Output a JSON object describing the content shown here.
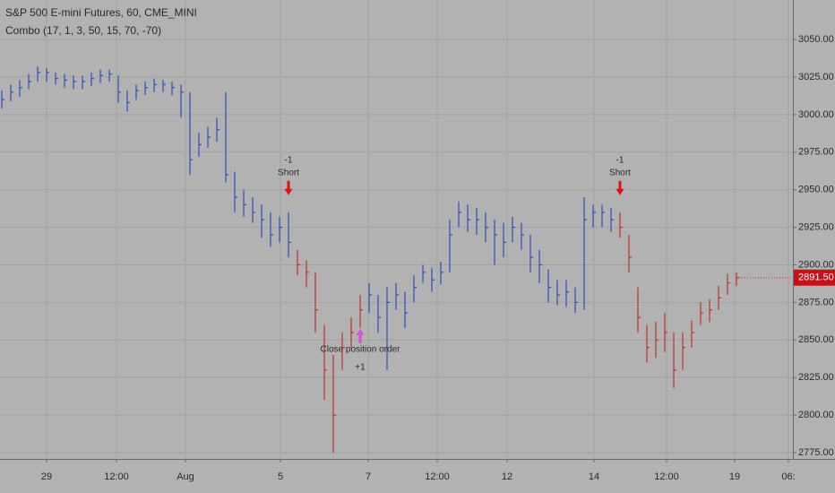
{
  "chart_data": {
    "type": "ohlc",
    "title": "S&P 500 E-mini Futures, 60, CME_MINI",
    "subtitle": "Combo (17, 1, 3, 50, 15, 70, -70)",
    "values": [
      3010,
      3015,
      3018,
      3022,
      3028,
      3028,
      3024,
      3023,
      3022,
      3022,
      3024,
      3026,
      3027,
      3015,
      3008,
      3016,
      3018,
      3020,
      3020,
      3018,
      3015,
      2970,
      2980,
      2985,
      2990,
      2960,
      2945,
      2940,
      2935,
      2930,
      2920,
      2925,
      2915,
      2900,
      2895,
      2870,
      2830,
      2800,
      2845,
      2855,
      2870,
      2880,
      2865,
      2875,
      2880,
      2868,
      2885,
      2895,
      2890,
      2895,
      2920,
      2935,
      2930,
      2930,
      2925,
      2920,
      2915,
      2925,
      2920,
      2905,
      2900,
      2885,
      2880,
      2882,
      2875,
      2930,
      2935,
      2935,
      2930,
      2925,
      2905,
      2865,
      2845,
      2850,
      2855,
      2830,
      2845,
      2855,
      2868,
      2870,
      2878,
      2888,
      2891.5
    ],
    "high": [
      3016,
      3020,
      3023,
      3027,
      3032,
      3031,
      3028,
      3027,
      3026,
      3026,
      3028,
      3030,
      3030,
      3026,
      3016,
      3020,
      3022,
      3024,
      3023,
      3022,
      3020,
      3015,
      2988,
      2992,
      2998,
      3015,
      2962,
      2950,
      2945,
      2940,
      2935,
      2932,
      2935,
      2910,
      2903,
      2895,
      2860,
      2840,
      2855,
      2865,
      2880,
      2888,
      2880,
      2885,
      2888,
      2882,
      2893,
      2900,
      2898,
      2902,
      2930,
      2942,
      2940,
      2938,
      2935,
      2930,
      2928,
      2932,
      2928,
      2920,
      2910,
      2897,
      2890,
      2890,
      2885,
      2945,
      2940,
      2940,
      2938,
      2935,
      2920,
      2885,
      2860,
      2862,
      2868,
      2855,
      2855,
      2863,
      2875,
      2877,
      2886,
      2894,
      2895
    ],
    "low": [
      3004,
      3009,
      3012,
      3017,
      3022,
      3022,
      3020,
      3018,
      3017,
      3017,
      3019,
      3021,
      3022,
      3008,
      3002,
      3010,
      3013,
      3015,
      3015,
      3013,
      2998,
      2960,
      2972,
      2978,
      2982,
      2955,
      2935,
      2932,
      2928,
      2918,
      2912,
      2915,
      2905,
      2893,
      2885,
      2855,
      2810,
      2775,
      2830,
      2845,
      2858,
      2868,
      2855,
      2830,
      2870,
      2858,
      2875,
      2888,
      2882,
      2887,
      2895,
      2925,
      2922,
      2920,
      2915,
      2900,
      2905,
      2915,
      2910,
      2895,
      2888,
      2875,
      2873,
      2872,
      2868,
      2870,
      2925,
      2925,
      2922,
      2918,
      2895,
      2855,
      2835,
      2838,
      2842,
      2818,
      2830,
      2845,
      2860,
      2862,
      2870,
      2880,
      2886
    ],
    "segments": [
      {
        "start": 0,
        "color": "#2d4fb5"
      },
      {
        "start": 33,
        "color": "#c0302a"
      },
      {
        "start": 41,
        "color": "#2d4fb5"
      },
      {
        "start": 69,
        "color": "#c0302a"
      }
    ],
    "ylim": [
      2770.8,
      3076.3
    ],
    "yticks": [
      {
        "value": 2775,
        "label": "2775.00"
      },
      {
        "value": 2800,
        "label": "2800.00"
      },
      {
        "value": 2825,
        "label": "2825.00"
      },
      {
        "value": 2850,
        "label": "2850.00"
      },
      {
        "value": 2875,
        "label": "2875.00"
      },
      {
        "value": 2900,
        "label": "2900.00"
      },
      {
        "value": 2925,
        "label": "2925.00"
      },
      {
        "value": 2950,
        "label": "2950.00"
      },
      {
        "value": 2975,
        "label": "2975.00"
      },
      {
        "value": 3000,
        "label": "3000.00"
      },
      {
        "value": 3025,
        "label": "3025.00"
      },
      {
        "value": 3050,
        "label": "3050.00"
      }
    ],
    "xlim": [
      -0.2,
      88.3
    ],
    "xticks": [
      {
        "value": 5,
        "label": "29"
      },
      {
        "value": 12.8,
        "label": "12:00"
      },
      {
        "value": 20.5,
        "label": "Aug"
      },
      {
        "value": 31.1,
        "label": "5"
      },
      {
        "value": 40.9,
        "label": "7"
      },
      {
        "value": 48.6,
        "label": "12:00"
      },
      {
        "value": 56.4,
        "label": "12"
      },
      {
        "value": 66.1,
        "label": "14"
      },
      {
        "value": 74.2,
        "label": "12:00"
      },
      {
        "value": 81.8,
        "label": "19"
      },
      {
        "value": 87.8,
        "label": "06:"
      }
    ],
    "last_price": {
      "value": 2891.5,
      "label": "2891.50"
    },
    "grid": true,
    "signals": [
      {
        "index": 32,
        "qty": "-1",
        "label": "Short",
        "direction": "down",
        "color": "#e01010"
      },
      {
        "index": 40,
        "qty": "+1",
        "label": "Close position order",
        "direction": "up",
        "color": "#d84fd8"
      },
      {
        "index": 69,
        "qty": "-1",
        "label": "Short",
        "direction": "down",
        "color": "#e01010"
      }
    ]
  }
}
